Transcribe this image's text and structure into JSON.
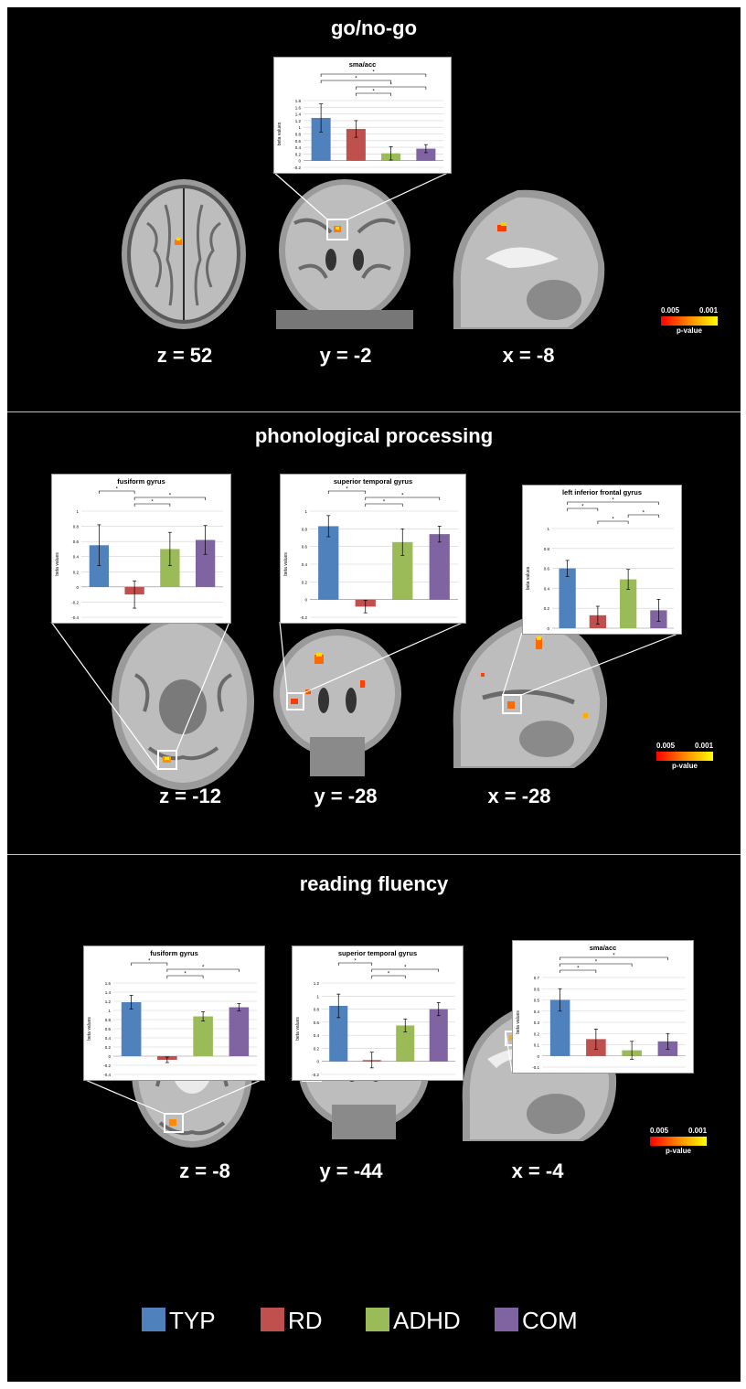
{
  "colors": {
    "TYP": "#4f81bd",
    "RD": "#c0504d",
    "ADHD": "#9bbb59",
    "COM": "#8064a2"
  },
  "legend": [
    {
      "name": "TYP",
      "color": "#4f81bd"
    },
    {
      "name": "RD",
      "color": "#c0504d"
    },
    {
      "name": "ADHD",
      "color": "#9bbb59"
    },
    {
      "name": "COM",
      "color": "#8064a2"
    }
  ],
  "pvalue": {
    "low": "0.005",
    "high": "0.001",
    "label": "p-value"
  },
  "panels": [
    {
      "title": "go/no-go",
      "coords": [
        "z = 52",
        "y = -2",
        "x = -8"
      ]
    },
    {
      "title": "phonological processing",
      "coords": [
        "z = -12",
        "y = -28",
        "x = -28"
      ]
    },
    {
      "title": "reading fluency",
      "coords": [
        "z = -8",
        "y = -44",
        "x = -4"
      ]
    }
  ],
  "chart_data": [
    {
      "id": "c1",
      "type": "bar",
      "title": "sma/acc",
      "ylabel": "beta values",
      "ylim": [
        -0.2,
        1.8
      ],
      "ticks": [
        -0.2,
        0,
        0.2,
        0.4,
        0.6,
        0.8,
        1,
        1.2,
        1.4,
        1.6,
        1.8
      ],
      "tick_labels": [
        "-0.2",
        "0",
        "0.2",
        "0.4",
        "0.6",
        "0.8",
        "1",
        "1.2",
        "1.4",
        "1.6",
        "1.8"
      ],
      "categories": [
        "TYP",
        "RD",
        "ADHD",
        "COM"
      ],
      "values": [
        1.28,
        0.95,
        0.22,
        0.36
      ],
      "errors": [
        0.42,
        0.25,
        0.2,
        0.12
      ],
      "significance": [
        {
          "from": 0,
          "to": 3,
          "label": "*"
        },
        {
          "from": 0,
          "to": 2,
          "label": "*"
        },
        {
          "from": 1,
          "to": 3,
          "label": "*"
        },
        {
          "from": 1,
          "to": 2,
          "label": "*"
        }
      ]
    },
    {
      "id": "c2",
      "type": "bar",
      "title": "fusiform gyrus",
      "ylabel": "beta values",
      "ylim": [
        -0.4,
        1
      ],
      "ticks": [
        -0.4,
        -0.2,
        0,
        0.2,
        0.4,
        0.6,
        0.8,
        1
      ],
      "tick_labels": [
        "-0.4",
        "-0.2",
        "0",
        "0.2",
        "0.4",
        "0.6",
        "0.8",
        "1"
      ],
      "categories": [
        "TYP",
        "RD",
        "ADHD",
        "COM"
      ],
      "values": [
        0.55,
        -0.1,
        0.5,
        0.62
      ],
      "errors": [
        0.27,
        0.18,
        0.22,
        0.19
      ],
      "significance": [
        {
          "from": 0,
          "to": 1,
          "label": "*"
        },
        {
          "from": 1,
          "to": 3,
          "label": "*"
        },
        {
          "from": 1,
          "to": 2,
          "label": "*"
        }
      ]
    },
    {
      "id": "c3",
      "type": "bar",
      "title": "superior temporal gyrus",
      "ylabel": "beta values",
      "ylim": [
        -0.2,
        1
      ],
      "ticks": [
        -0.2,
        0,
        0.2,
        0.4,
        0.6,
        0.8,
        1
      ],
      "tick_labels": [
        "-0.2",
        "0",
        "0.2",
        "0.4",
        "0.6",
        "0.8",
        "1"
      ],
      "categories": [
        "TYP",
        "RD",
        "ADHD",
        "COM"
      ],
      "values": [
        0.83,
        -0.08,
        0.65,
        0.74
      ],
      "errors": [
        0.12,
        0.07,
        0.15,
        0.09
      ],
      "significance": [
        {
          "from": 0,
          "to": 1,
          "label": "*"
        },
        {
          "from": 1,
          "to": 3,
          "label": "*"
        },
        {
          "from": 1,
          "to": 2,
          "label": "*"
        }
      ]
    },
    {
      "id": "c4",
      "type": "bar",
      "title": "left inferior frontal gyrus",
      "ylabel": "beta values",
      "ylim": [
        0,
        1
      ],
      "ticks": [
        0,
        0.2,
        0.4,
        0.6,
        0.8,
        1
      ],
      "tick_labels": [
        "0",
        "0.2",
        "0.4",
        "0.6",
        "0.8",
        "1"
      ],
      "categories": [
        "TYP",
        "RD",
        "ADHD",
        "COM"
      ],
      "values": [
        0.6,
        0.13,
        0.49,
        0.18
      ],
      "errors": [
        0.08,
        0.09,
        0.1,
        0.11
      ],
      "significance": [
        {
          "from": 0,
          "to": 3,
          "label": "*"
        },
        {
          "from": 0,
          "to": 1,
          "label": "*"
        },
        {
          "from": 2,
          "to": 3,
          "label": "*"
        },
        {
          "from": 1,
          "to": 2,
          "label": "*"
        }
      ]
    },
    {
      "id": "c5",
      "type": "bar",
      "title": "fusiform gyrus",
      "ylabel": "beta values",
      "ylim": [
        -0.4,
        1.6
      ],
      "ticks": [
        -0.4,
        -0.2,
        0,
        0.2,
        0.4,
        0.6,
        0.8,
        1,
        1.2,
        1.4,
        1.6
      ],
      "tick_labels": [
        "-0.4",
        "-0.2",
        "0",
        "0.2",
        "0.4",
        "0.6",
        "0.8",
        "1",
        "1.2",
        "1.4",
        "1.6"
      ],
      "categories": [
        "TYP",
        "RD",
        "ADHD",
        "COM"
      ],
      "values": [
        1.18,
        -0.08,
        0.87,
        1.07
      ],
      "errors": [
        0.15,
        0.06,
        0.1,
        0.08
      ],
      "significance": [
        {
          "from": 0,
          "to": 1,
          "label": "*"
        },
        {
          "from": 1,
          "to": 3,
          "label": "*"
        },
        {
          "from": 1,
          "to": 2,
          "label": "*"
        }
      ]
    },
    {
      "id": "c6",
      "type": "bar",
      "title": "superior temporal gyrus",
      "ylabel": "beta values",
      "ylim": [
        -0.2,
        1.2
      ],
      "ticks": [
        -0.2,
        0,
        0.2,
        0.4,
        0.6,
        0.8,
        1,
        1.2
      ],
      "tick_labels": [
        "-0.2",
        "0",
        "0.2",
        "0.4",
        "0.6",
        "0.8",
        "1",
        "1.2"
      ],
      "categories": [
        "TYP",
        "RD",
        "ADHD",
        "COM"
      ],
      "values": [
        0.85,
        0.02,
        0.55,
        0.8
      ],
      "errors": [
        0.18,
        0.12,
        0.1,
        0.1
      ],
      "significance": [
        {
          "from": 0,
          "to": 1,
          "label": "*"
        },
        {
          "from": 1,
          "to": 3,
          "label": "*"
        },
        {
          "from": 1,
          "to": 2,
          "label": "*"
        }
      ]
    },
    {
      "id": "c7",
      "type": "bar",
      "title": "sma/acc",
      "ylabel": "beta values",
      "ylim": [
        -0.1,
        0.7
      ],
      "ticks": [
        -0.1,
        0,
        0.1,
        0.2,
        0.3,
        0.4,
        0.5,
        0.6,
        0.7
      ],
      "tick_labels": [
        "-0.1",
        "0",
        "0.1",
        "0.2",
        "0.3",
        "0.4",
        "0.5",
        "0.6",
        "0.7"
      ],
      "categories": [
        "TYP",
        "RD",
        "ADHD",
        "COM"
      ],
      "values": [
        0.5,
        0.15,
        0.05,
        0.13
      ],
      "errors": [
        0.1,
        0.09,
        0.08,
        0.07
      ],
      "significance": [
        {
          "from": 0,
          "to": 3,
          "label": "*"
        },
        {
          "from": 0,
          "to": 2,
          "label": "*"
        },
        {
          "from": 0,
          "to": 1,
          "label": "*"
        }
      ]
    }
  ]
}
